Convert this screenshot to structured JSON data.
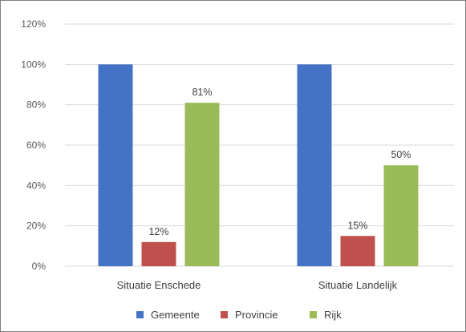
{
  "chart_data": {
    "type": "bar",
    "categories": [
      "Situatie Enschede",
      "Situatie Landelijk"
    ],
    "series": [
      {
        "name": "Gemeente",
        "values": [
          100,
          100
        ],
        "labels": [
          "",
          ""
        ],
        "color": "#4472C4"
      },
      {
        "name": "Provincie",
        "values": [
          12,
          15
        ],
        "labels": [
          "12%",
          "15%"
        ],
        "color": "#C0504D"
      },
      {
        "name": "Rijk",
        "values": [
          81,
          50
        ],
        "labels": [
          "81%",
          "50%"
        ],
        "color": "#9BBB59"
      }
    ],
    "y_ticks": [
      {
        "value": 0,
        "label": "0%"
      },
      {
        "value": 20,
        "label": "20%"
      },
      {
        "value": 40,
        "label": "40%"
      },
      {
        "value": 60,
        "label": "60%"
      },
      {
        "value": 80,
        "label": "80%"
      },
      {
        "value": 100,
        "label": "100%"
      },
      {
        "value": 120,
        "label": "120%"
      }
    ],
    "ylim": [
      0,
      120
    ],
    "grid": true,
    "legend_position": "bottom"
  }
}
